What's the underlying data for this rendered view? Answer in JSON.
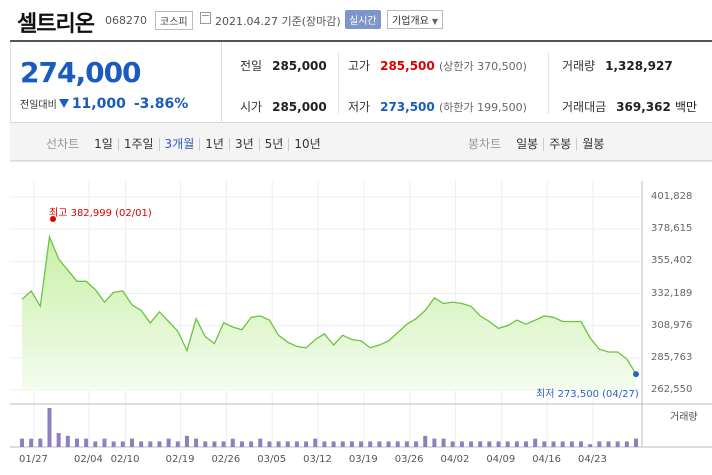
{
  "header": {
    "name": "셀트리온",
    "code": "068270",
    "market": "코스피",
    "date_label": "2021.04.27  기준(장마감)",
    "realtime": "실시간",
    "company_overview": "기업개요"
  },
  "quote": {
    "price": "274,000",
    "change_label": "전일대비",
    "change_amount": "11,000",
    "change_pct": "-3.86%",
    "prev_close": {
      "label": "전일",
      "value": "285,000"
    },
    "open": {
      "label": "시가",
      "value": "285,000"
    },
    "high": {
      "label": "고가",
      "value": "285,500",
      "sub": "(상한가 370,500)"
    },
    "low": {
      "label": "저가",
      "value": "273,500",
      "sub": "(하한가 199,500)"
    },
    "volume": {
      "label": "거래량",
      "value": "1,328,927"
    },
    "amount": {
      "label": "거래대금",
      "value": "369,362",
      "unit": "백만"
    }
  },
  "tabs": {
    "line_label": "선차트",
    "line_items": [
      "1일",
      "1주일",
      "3개월",
      "1년",
      "3년",
      "5년",
      "10년"
    ],
    "line_active": 2,
    "candle_label": "봉차트",
    "candle_items": [
      "일봉",
      "주봉",
      "월봉"
    ]
  },
  "chart_data": {
    "type": "area",
    "yticks": [
      "401,828",
      "378,615",
      "355,402",
      "332,189",
      "308,976",
      "285,763",
      "262,550"
    ],
    "ylim": [
      262550,
      401828
    ],
    "xticks": [
      "01/27",
      "02/04",
      "02/10",
      "02/19",
      "02/26",
      "03/05",
      "03/12",
      "03/19",
      "03/26",
      "04/02",
      "04/09",
      "04/16",
      "04/23"
    ],
    "values": [
      328000,
      334000,
      323000,
      373000,
      357000,
      349000,
      341000,
      341000,
      335000,
      326000,
      333000,
      334000,
      324000,
      320000,
      311000,
      319000,
      312000,
      305000,
      291000,
      314000,
      301000,
      296000,
      311000,
      308000,
      306000,
      315000,
      316000,
      313000,
      302000,
      297000,
      294000,
      293000,
      299000,
      303000,
      295000,
      302000,
      299000,
      298000,
      293000,
      295000,
      298000,
      304000,
      310000,
      314000,
      320000,
      329000,
      325000,
      326000,
      325000,
      323000,
      316000,
      312000,
      307000,
      309000,
      313000,
      310000,
      313000,
      316000,
      315000,
      312000,
      312000,
      312000,
      300000,
      292000,
      290000,
      290000,
      285000,
      274000
    ],
    "volumes": [
      3,
      3,
      3,
      14,
      5,
      4,
      3,
      3,
      2,
      3,
      2,
      2,
      3,
      2,
      2,
      2,
      3,
      2,
      4,
      3,
      2,
      2,
      2,
      3,
      2,
      2,
      3,
      2,
      2,
      2,
      2,
      2,
      3,
      2,
      2,
      2,
      2,
      2,
      2,
      2,
      2,
      2,
      2,
      2,
      4,
      3,
      3,
      2,
      2,
      2,
      2,
      2,
      2,
      2,
      2,
      2,
      3,
      2,
      2,
      2,
      2,
      2,
      1,
      2,
      2,
      2,
      2,
      3
    ],
    "high_annotation": "최고 382,999 (02/01)",
    "low_annotation": "최저 273,500 (04/27)",
    "volume_label": "거래량"
  }
}
